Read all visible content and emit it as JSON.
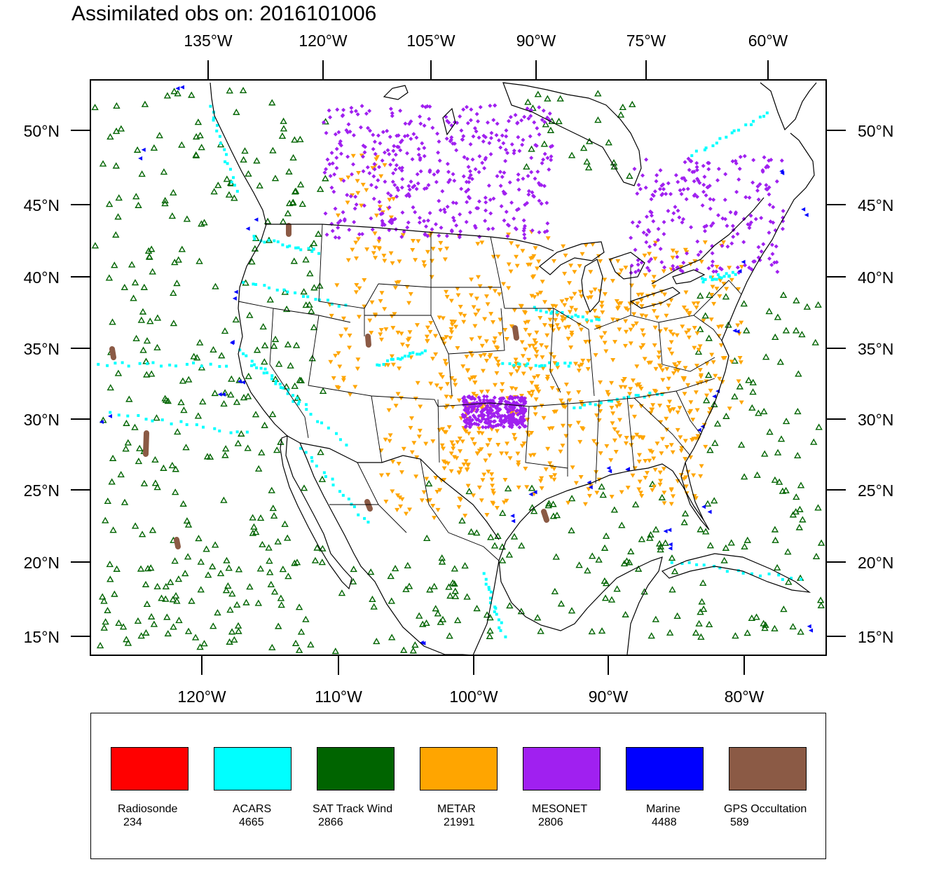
{
  "title": "Assimilated obs on: 2016101006",
  "top_lon_labels": [
    "135°W",
    "120°W",
    "105°W",
    "90°W",
    "75°W",
    "60°W"
  ],
  "bottom_lon_labels": [
    "120°W",
    "110°W",
    "100°W",
    "90°W",
    "80°W"
  ],
  "lat_labels": [
    "50°N",
    "45°N",
    "40°N",
    "35°N",
    "30°N",
    "25°N",
    "20°N",
    "15°N"
  ],
  "colors": {
    "radiosonde": "#ff0000",
    "acars": "#00ffff",
    "sat_track_wind": "#006400",
    "metar": "#ffa500",
    "mesonet": "#a020f0",
    "marine": "#0000ff",
    "gps_occultation": "#8b5a45"
  },
  "legend": [
    {
      "name": "Radiosonde",
      "count": "234",
      "color": "#ff0000"
    },
    {
      "name": "ACARS",
      "count": "4665",
      "color": "#00ffff"
    },
    {
      "name": "SAT Track Wind",
      "count": "2866",
      "color": "#006400"
    },
    {
      "name": "METAR",
      "count": "21991",
      "color": "#ffa500"
    },
    {
      "name": "MESONET",
      "count": "2806",
      "color": "#a020f0"
    },
    {
      "name": "Marine",
      "count": "4488",
      "color": "#0000ff"
    },
    {
      "name": "GPS Occultation",
      "count": "589",
      "color": "#8b5a45"
    }
  ]
}
